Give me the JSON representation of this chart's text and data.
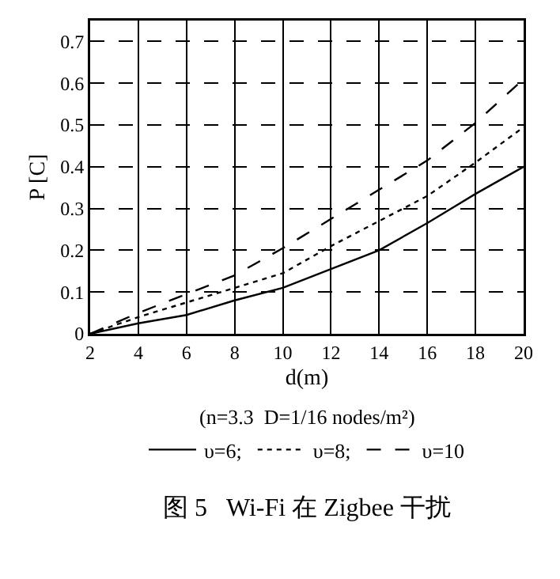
{
  "chart_data": {
    "type": "line",
    "xlabel": "d(m)",
    "ylabel": "P [C]",
    "x": [
      2,
      4,
      6,
      8,
      10,
      12,
      14,
      16,
      18,
      20
    ],
    "series": [
      {
        "name": "υ=6;",
        "color": "#000000",
        "line_style": "solid",
        "values": [
          0,
          0.025,
          0.045,
          0.08,
          0.11,
          0.155,
          0.2,
          0.265,
          0.335,
          0.4
        ]
      },
      {
        "name": "υ=8;",
        "color": "#000000",
        "line_style": "dotted",
        "values": [
          0,
          0.04,
          0.075,
          0.11,
          0.145,
          0.21,
          0.27,
          0.33,
          0.41,
          0.495
        ]
      },
      {
        "name": "υ=10",
        "color": "#000000",
        "line_style": "dashed",
        "values": [
          0,
          0.05,
          0.095,
          0.14,
          0.205,
          0.275,
          0.345,
          0.415,
          0.505,
          0.61
        ]
      }
    ],
    "xlim": [
      2,
      20
    ],
    "xticks": [
      2,
      4,
      6,
      8,
      10,
      12,
      14,
      16,
      18,
      20
    ],
    "ylim": [
      0,
      0.75
    ],
    "yticks": [
      0,
      0.1,
      0.2,
      0.3,
      0.4,
      0.5,
      0.6,
      0.7
    ],
    "grid": true,
    "legend": "bottom",
    "annotations": [
      "(n=3.3  D=1/16 nodes/m²)",
      "图 5   Wi-Fi 在 Zigbee 干扰"
    ]
  }
}
